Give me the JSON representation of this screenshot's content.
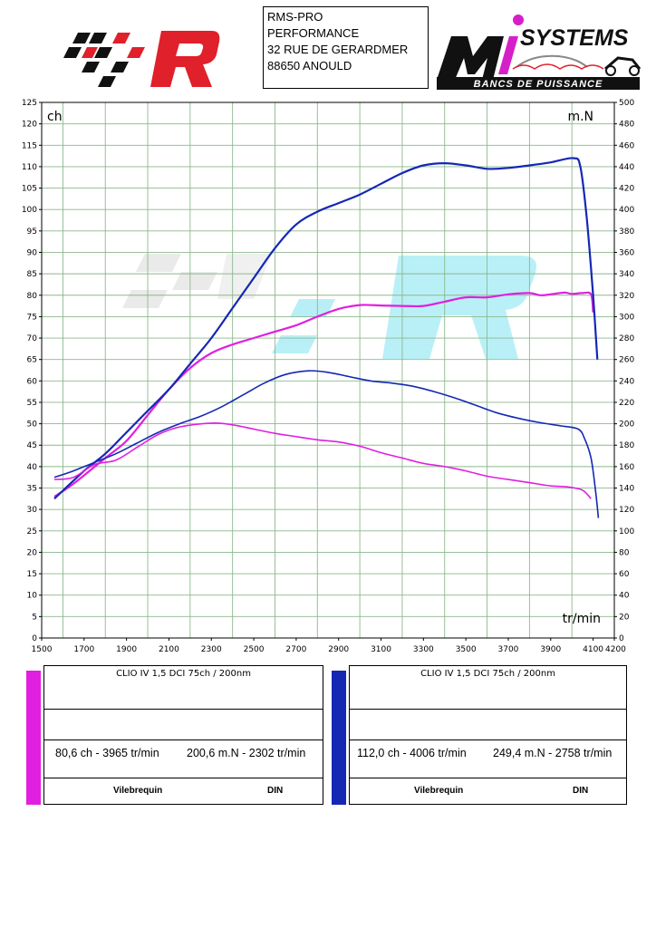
{
  "header": {
    "address_lines": [
      "RMS-PRO",
      "PERFORMANCE",
      "32 RUE DE GERARDMER",
      "88650 ANOULD"
    ],
    "right_logo": {
      "word": "SYSTEMS",
      "tagline": "BANCS DE PUISSANCE"
    }
  },
  "colors": {
    "magenta": "#E01FE0",
    "blue": "#1428B4",
    "grid": "#8CB88C",
    "logo_red": "#E0202A",
    "logo_black": "#111111"
  },
  "chart_data": {
    "type": "line",
    "left_axis_unit": "ch",
    "right_axis_unit": "m.N",
    "x_axis_unit": "tr/min",
    "xlim": [
      1500,
      4200
    ],
    "x_ticks": [
      1500,
      1700,
      1900,
      2100,
      2300,
      2500,
      2700,
      2900,
      3100,
      3300,
      3500,
      3700,
      3900,
      4100,
      4200
    ],
    "ylim_left": [
      0,
      125
    ],
    "ylim_right": [
      0,
      500
    ],
    "grid": true,
    "series": [
      {
        "color": "magenta",
        "axis": "left",
        "x": [
          1560,
          1650,
          1800,
          1900,
          2000,
          2100,
          2200,
          2300,
          2400,
          2500,
          2600,
          2700,
          2800,
          2900,
          3000,
          3100,
          3200,
          3300,
          3400,
          3500,
          3600,
          3700,
          3800,
          3850,
          3900,
          3965,
          4000,
          4050,
          4090,
          4100
        ],
        "y": [
          33,
          36,
          42,
          46,
          52,
          58,
          63,
          66.5,
          68.5,
          70,
          71.5,
          73,
          75,
          76.8,
          77.7,
          77.6,
          77.5,
          77.5,
          78.5,
          79.5,
          79.5,
          80.2,
          80.5,
          80.0,
          80.2,
          80.6,
          80.3,
          80.5,
          80.2,
          76
        ]
      },
      {
        "color": "blue",
        "axis": "left",
        "x": [
          1560,
          1700,
          1800,
          1900,
          2000,
          2100,
          2200,
          2300,
          2400,
          2500,
          2600,
          2700,
          2800,
          2900,
          3000,
          3100,
          3200,
          3300,
          3400,
          3500,
          3600,
          3700,
          3800,
          3900,
          4006,
          4040,
          4070,
          4100,
          4120
        ],
        "y": [
          32.5,
          39,
          43,
          48,
          53,
          58,
          64,
          70,
          77,
          84,
          91,
          96.5,
          99.5,
          101.5,
          103.5,
          106,
          108.5,
          110.3,
          110.8,
          110.3,
          109.5,
          109.7,
          110.3,
          111.0,
          112.0,
          110,
          98,
          80,
          65
        ]
      },
      {
        "color": "magenta",
        "axis": "right",
        "x": [
          1560,
          1650,
          1750,
          1850,
          1950,
          2050,
          2150,
          2302,
          2400,
          2500,
          2600,
          2700,
          2800,
          2900,
          3000,
          3100,
          3200,
          3300,
          3400,
          3500,
          3600,
          3700,
          3800,
          3900,
          3980,
          4050,
          4090
        ],
        "y": [
          148,
          150,
          162,
          166,
          178,
          190,
          197,
          200.6,
          199,
          195,
          191,
          188,
          185,
          183,
          179,
          173,
          168,
          163,
          160,
          156,
          151,
          148,
          145,
          142,
          141,
          138,
          130
        ]
      },
      {
        "color": "blue",
        "axis": "right",
        "x": [
          1560,
          1650,
          1750,
          1850,
          1950,
          2050,
          2150,
          2250,
          2350,
          2450,
          2550,
          2650,
          2758,
          2850,
          2950,
          3050,
          3150,
          3250,
          3350,
          3450,
          3550,
          3650,
          3750,
          3850,
          3950,
          4030,
          4060,
          4090,
          4110,
          4125
        ],
        "y": [
          150,
          156,
          164,
          172,
          182,
          192,
          200,
          207,
          216,
          227,
          238,
          246,
          249.4,
          248,
          244,
          240,
          238,
          235,
          230,
          224,
          217,
          210,
          205,
          201,
          198,
          195,
          186,
          168,
          140,
          112
        ]
      }
    ]
  },
  "panels": [
    {
      "color": "magenta",
      "title": "CLIO IV 1,5 DCI 75ch / 200nm",
      "power": "80,6 ch - 3965 tr/min",
      "torque": "200,6 m.N - 2302 tr/min",
      "foot_left": "Vilebrequin",
      "foot_right": "DIN"
    },
    {
      "color": "blue",
      "title": "CLIO IV 1,5 DCI 75ch / 200nm",
      "power": "112,0 ch - 4006 tr/min",
      "torque": "249,4 m.N - 2758 tr/min",
      "foot_left": "Vilebrequin",
      "foot_right": "DIN"
    }
  ]
}
